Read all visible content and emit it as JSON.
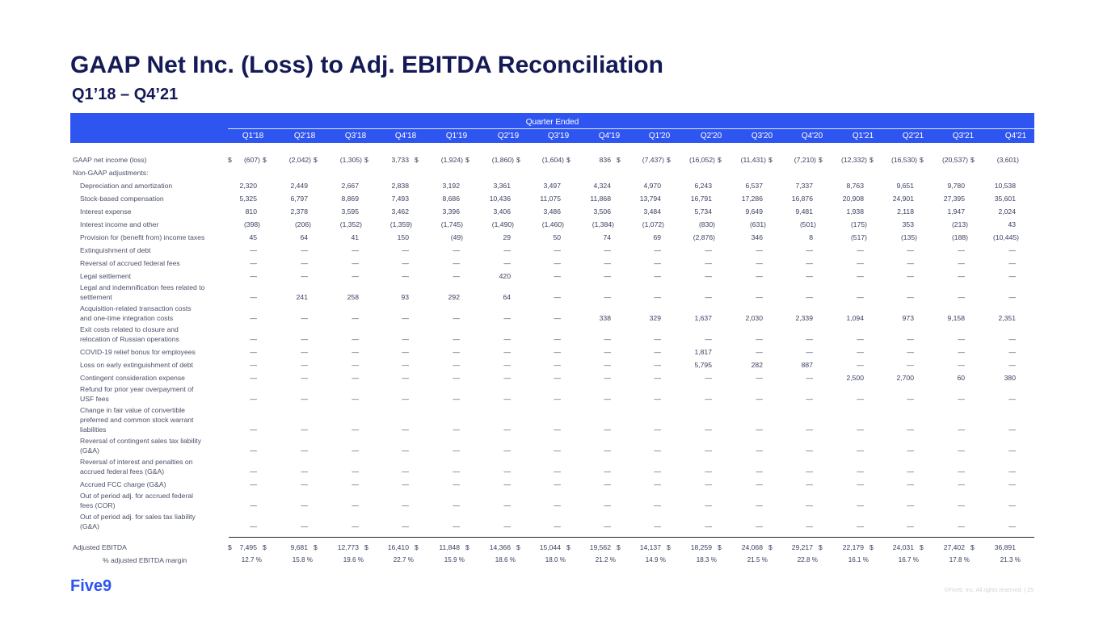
{
  "title": "GAAP Net Inc. (Loss) to Adj. EBITDA Reconciliation",
  "subtitle": "Q1’18 – Q4’21",
  "header": {
    "group_label": "Quarter Ended",
    "quarters": [
      "Q1'18",
      "Q2'18",
      "Q3'18",
      "Q4'18",
      "Q1'19",
      "Q2'19",
      "Q3'19",
      "Q4'19",
      "Q1'20",
      "Q2'20",
      "Q3'20",
      "Q4'20",
      "Q1'21",
      "Q2'21",
      "Q3'21",
      "Q4'21"
    ]
  },
  "currency_symbol": "$",
  "rows": [
    {
      "label": "GAAP net income (loss)",
      "indent": 0,
      "y": 192,
      "lines": 1,
      "dollar": true,
      "values": [
        "(607)",
        "(2,042)",
        "(1,305)",
        "3,733",
        "(1,924)",
        "(1,860)",
        "(1,604)",
        "836",
        "(7,437)",
        "(16,052)",
        "(11,431)",
        "(7,210)",
        "(12,332)",
        "(16,530)",
        "(20,537)",
        "(3,601)"
      ]
    },
    {
      "label": "Non-GAAP adjustments:",
      "indent": 0,
      "y": 208,
      "lines": 1,
      "values": []
    },
    {
      "label": "Depreciation and amortization",
      "indent": 1,
      "y": 224,
      "lines": 1,
      "values": [
        "2,320",
        "2,449",
        "2,667",
        "2,838",
        "3,192",
        "3,361",
        "3,497",
        "4,324",
        "4,970",
        "6,243",
        "6,537",
        "7,337",
        "8,763",
        "9,651",
        "9,780",
        "10,538"
      ]
    },
    {
      "label": "Stock-based compensation",
      "indent": 1,
      "y": 240,
      "lines": 1,
      "values": [
        "5,325",
        "6,797",
        "8,869",
        "7,493",
        "8,686",
        "10,436",
        "11,075",
        "11,868",
        "13,794",
        "16,791",
        "17,286",
        "16,876",
        "20,908",
        "24,901",
        "27,395",
        "35,601"
      ]
    },
    {
      "label": "Interest expense",
      "indent": 1,
      "y": 256,
      "lines": 1,
      "values": [
        "810",
        "2,378",
        "3,595",
        "3,462",
        "3,396",
        "3,406",
        "3,486",
        "3,506",
        "3,484",
        "5,734",
        "9,649",
        "9,481",
        "1,938",
        "2,118",
        "1,947",
        "2,024"
      ]
    },
    {
      "label": "Interest income and other",
      "indent": 1,
      "y": 272,
      "lines": 1,
      "values": [
        "(398)",
        "(206)",
        "(1,352)",
        "(1,359)",
        "(1,745)",
        "(1,490)",
        "(1,460)",
        "(1,384)",
        "(1,072)",
        "(830)",
        "(631)",
        "(501)",
        "(175)",
        "353",
        "(213)",
        "43"
      ]
    },
    {
      "label": "Provision for (benefit from) income taxes",
      "indent": 1,
      "y": 288,
      "lines": 1,
      "values": [
        "45",
        "64",
        "41",
        "150",
        "(49)",
        "29",
        "50",
        "74",
        "69",
        "(2,876)",
        "346",
        "8",
        "(517)",
        "(135)",
        "(188)",
        "(10,445)"
      ]
    },
    {
      "label": "Extinguishment of debt",
      "indent": 1,
      "y": 304,
      "lines": 1,
      "values": [
        "—",
        "—",
        "—",
        "—",
        "—",
        "—",
        "—",
        "—",
        "—",
        "—",
        "—",
        "—",
        "—",
        "—",
        "—",
        "—"
      ]
    },
    {
      "label": "Reversal of accrued federal fees",
      "indent": 1,
      "y": 320,
      "lines": 1,
      "values": [
        "—",
        "—",
        "—",
        "—",
        "—",
        "—",
        "—",
        "—",
        "—",
        "—",
        "—",
        "—",
        "—",
        "—",
        "—",
        "—"
      ]
    },
    {
      "label": "Legal settlement",
      "indent": 1,
      "y": 336,
      "lines": 1,
      "values": [
        "—",
        "—",
        "—",
        "—",
        "—",
        "420",
        "—",
        "—",
        "—",
        "—",
        "—",
        "—",
        "—",
        "—",
        "—",
        "—"
      ]
    },
    {
      "label": "Legal and indemnification fees related to\nsettlement",
      "indent": 1,
      "y": 350,
      "lines": 2,
      "values": [
        "—",
        "241",
        "258",
        "93",
        "292",
        "64",
        "—",
        "—",
        "—",
        "—",
        "—",
        "—",
        "—",
        "—",
        "—",
        "—"
      ]
    },
    {
      "label": "Acquisition-related transaction costs\nand one-time integration costs",
      "indent": 1,
      "y": 376,
      "lines": 2,
      "values": [
        "—",
        "—",
        "—",
        "—",
        "—",
        "—",
        "—",
        "338",
        "329",
        "1,637",
        "2,030",
        "2,339",
        "1,094",
        "973",
        "9,158",
        "2,351"
      ]
    },
    {
      "label": "Exit costs related to closure and\nrelocation of Russian operations",
      "indent": 1,
      "y": 402,
      "lines": 2,
      "values": [
        "—",
        "—",
        "—",
        "—",
        "—",
        "—",
        "—",
        "—",
        "—",
        "—",
        "—",
        "—",
        "—",
        "—",
        "—",
        "—"
      ]
    },
    {
      "label": "COVID-19 relief bonus for employees",
      "indent": 1,
      "y": 430,
      "lines": 1,
      "values": [
        "—",
        "—",
        "—",
        "—",
        "—",
        "—",
        "—",
        "—",
        "—",
        "1,817",
        "—",
        "—",
        "—",
        "—",
        "—",
        "—"
      ]
    },
    {
      "label": "Loss on early extinguishment of debt",
      "indent": 1,
      "y": 446,
      "lines": 1,
      "values": [
        "—",
        "—",
        "—",
        "—",
        "—",
        "—",
        "—",
        "—",
        "—",
        "5,795",
        "282",
        "887",
        "—",
        "—",
        "—",
        "—"
      ]
    },
    {
      "label": "Contingent consideration expense",
      "indent": 1,
      "y": 462,
      "lines": 1,
      "values": [
        "—",
        "—",
        "—",
        "—",
        "—",
        "—",
        "—",
        "—",
        "—",
        "—",
        "—",
        "—",
        "2,500",
        "2,700",
        "60",
        "380"
      ]
    },
    {
      "label": "Refund for prior year overpayment of\nUSF fees",
      "indent": 1,
      "y": 476,
      "lines": 2,
      "values": [
        "—",
        "—",
        "—",
        "—",
        "—",
        "—",
        "—",
        "—",
        "—",
        "—",
        "—",
        "—",
        "—",
        "—",
        "—",
        "—"
      ]
    },
    {
      "label": "Change in fair value of convertible\npreferred and common stock warrant\nliabilities",
      "indent": 1,
      "y": 502,
      "lines": 3,
      "values": [
        "—",
        "—",
        "—",
        "—",
        "—",
        "—",
        "—",
        "—",
        "—",
        "—",
        "—",
        "—",
        "—",
        "—",
        "—",
        "—"
      ]
    },
    {
      "label": "Reversal of contingent sales tax liability\n(G&A)",
      "indent": 1,
      "y": 540,
      "lines": 2,
      "values": [
        "—",
        "—",
        "—",
        "—",
        "—",
        "—",
        "—",
        "—",
        "—",
        "—",
        "—",
        "—",
        "—",
        "—",
        "—",
        "—"
      ]
    },
    {
      "label": "Reversal of interest and penalties on\naccrued federal fees (G&A)",
      "indent": 1,
      "y": 566,
      "lines": 2,
      "values": [
        "—",
        "—",
        "—",
        "—",
        "—",
        "—",
        "—",
        "—",
        "—",
        "—",
        "—",
        "—",
        "—",
        "—",
        "—",
        "—"
      ]
    },
    {
      "label": "Accrued FCC charge (G&A)",
      "indent": 1,
      "y": 594,
      "lines": 1,
      "values": [
        "—",
        "—",
        "—",
        "—",
        "—",
        "—",
        "—",
        "—",
        "—",
        "—",
        "—",
        "—",
        "—",
        "—",
        "—",
        "—"
      ]
    },
    {
      "label": "Out of period adj. for accrued federal\nfees (COR)",
      "indent": 1,
      "y": 608,
      "lines": 2,
      "values": [
        "—",
        "—",
        "—",
        "—",
        "—",
        "—",
        "—",
        "—",
        "—",
        "—",
        "—",
        "—",
        "—",
        "—",
        "—",
        "—"
      ]
    },
    {
      "label": "Out of period adj. for sales tax liability\n(G&A)",
      "indent": 1,
      "y": 634,
      "lines": 2,
      "values": [
        "—",
        "—",
        "—",
        "—",
        "—",
        "—",
        "—",
        "—",
        "—",
        "—",
        "—",
        "—",
        "—",
        "—",
        "—",
        "—"
      ]
    },
    {
      "label": "Adjusted EBITDA",
      "indent": 0,
      "y": 672,
      "lines": 1,
      "dollar": true,
      "values": [
        "7,495",
        "9,681",
        "12,773",
        "16,410",
        "11,848",
        "14,366",
        "15,044",
        "19,562",
        "14,137",
        "18,259",
        "24,068",
        "29,217",
        "22,179",
        "24,031",
        "27,402",
        "36,891"
      ]
    }
  ],
  "margin_row": {
    "label": "% adjusted EBITDA margin",
    "values": [
      "12.7 %",
      "15.8 %",
      "19.6 %",
      "22.7 %",
      "15.9 %",
      "18.6 %",
      "18.0 %",
      "21.2 %",
      "14.9 %",
      "18.3 %",
      "21.5 %",
      "22.8 %",
      "16.1 %",
      "16.7 %",
      "17.8 %",
      "21.3 %"
    ]
  },
  "brand": {
    "logo_text": "Five9",
    "accent": "#2f55f0",
    "title_color": "#141a55"
  },
  "footer": "©Five9, Inc. All rights reserved.  |  25"
}
